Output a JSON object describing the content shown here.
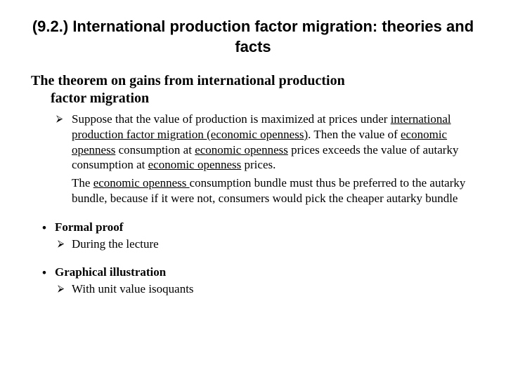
{
  "title": "(9.2.) International production factor migration: theories and facts",
  "subheading_line1": "The theorem on gains from international production",
  "subheading_line2": "factor migration",
  "para1_pre": "Suppose that the value of production is maximized at prices under ",
  "para1_u1": "international production factor migration (economic openness)",
  "para1_mid1": ". Then the value of ",
  "para1_u2": "economic openness",
  "para1_mid2": " consumption at ",
  "para1_u3": "economic openness",
  "para1_mid3": " prices exceeds the value of autarky consumption at ",
  "para1_u4": "economic openness",
  "para1_post": " prices.",
  "para2_pre": "The ",
  "para2_u1": "economic openness ",
  "para2_post": "consumption bundle must thus be preferred to the autarky bundle, because if it were not, consumers  would pick the cheaper autarky bundle",
  "formal_proof": "Formal proof",
  "formal_proof_sub": "During the lecture",
  "graphical": "Graphical illustration",
  "graphical_sub": "With unit value isoquants",
  "bullet_box": "⮚",
  "bullet_dot": "•"
}
